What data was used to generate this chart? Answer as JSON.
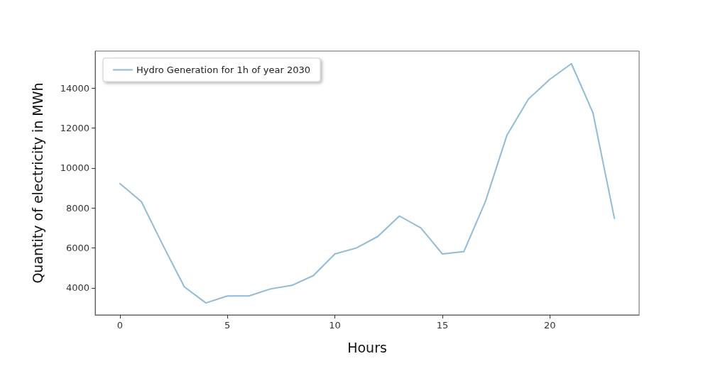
{
  "chart_data": {
    "type": "line",
    "xlabel": "Hours",
    "ylabel": "Quantity of electricity in MWh",
    "x": [
      0,
      1,
      2,
      3,
      4,
      5,
      6,
      7,
      8,
      9,
      10,
      11,
      12,
      13,
      14,
      15,
      16,
      17,
      18,
      19,
      20,
      21,
      22,
      23
    ],
    "series": [
      {
        "name": "Hydro Generation for 1h of year 2030",
        "color": "#8fbbd9",
        "values": [
          9220,
          8320,
          6140,
          4050,
          3250,
          3600,
          3600,
          3950,
          4130,
          4620,
          5700,
          6000,
          6580,
          7600,
          7000,
          5700,
          5820,
          8320,
          11640,
          13450,
          14440,
          15220,
          12770,
          7480
        ]
      }
    ],
    "xlim": [
      -1.15,
      24.15
    ],
    "xticks": [
      0,
      5,
      10,
      15,
      20
    ],
    "ylim": [
      2650,
      15850
    ],
    "yticks": [
      4000,
      6000,
      8000,
      10000,
      12000,
      14000
    ],
    "grid": false,
    "legend": "top left",
    "marker": "none",
    "line_style": "solid"
  }
}
